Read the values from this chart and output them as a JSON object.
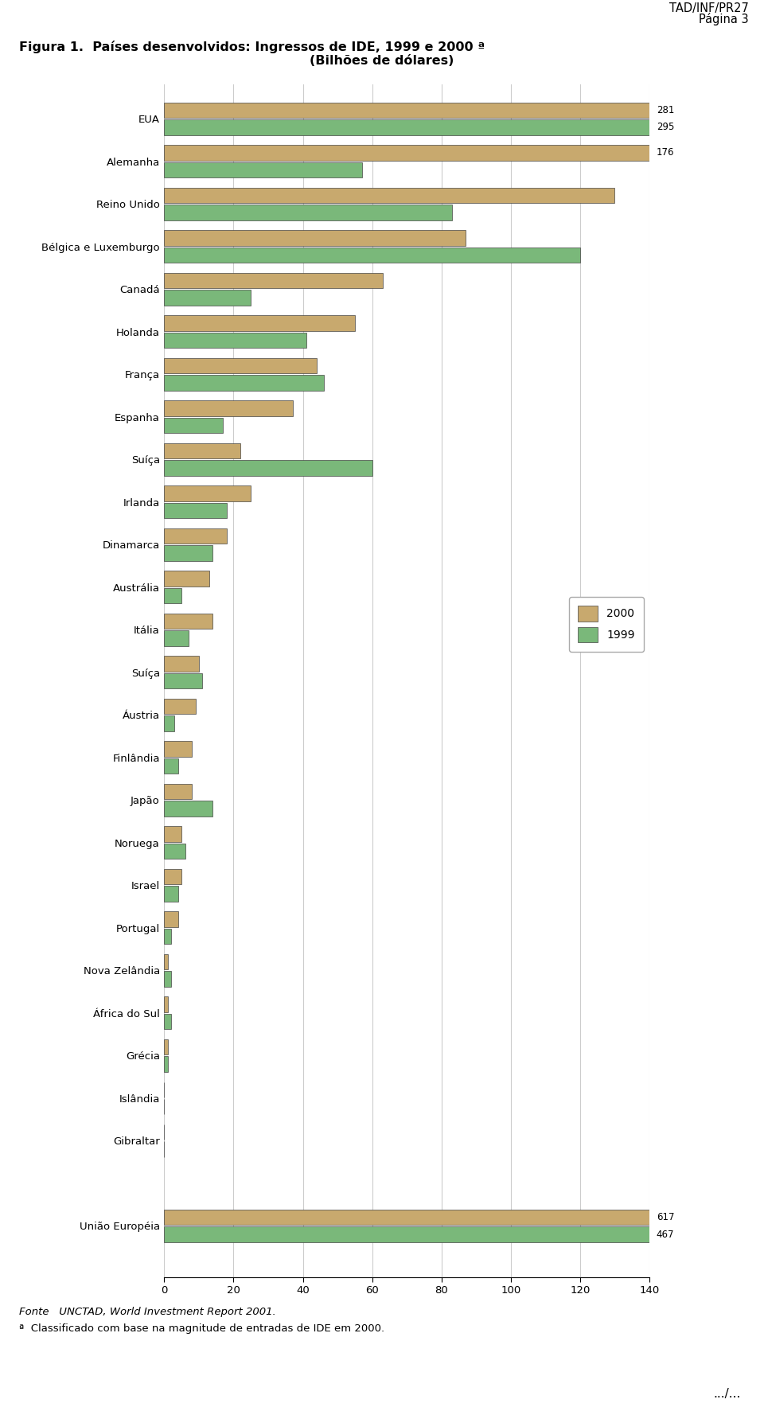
{
  "header_right_line1": "TAD/INF/PR27",
  "header_right_line2": "Página 3",
  "title_line1": "Figura 1.  Países desenvolvidos: Ingressos de IDE, 1999 e 2000 ª",
  "title_line2": "(Bilhões de dólares)",
  "categories": [
    "EUA",
    "Alemanha",
    "Reino Unido",
    "Bélgica e Luxemburgo",
    "Canadá",
    "Holanda",
    "França",
    "Espanha",
    "Suíça",
    "Irlanda",
    "Dinamarca",
    "Austrália",
    "Itália",
    "Suíça",
    "Áustria",
    "Finlândia",
    "Japão",
    "Noruega",
    "Israel",
    "Portugal",
    "Nova Zelândia",
    "África do Sul",
    "Grécia",
    "Islândia",
    "Gibraltar",
    "",
    "União Européia"
  ],
  "values_2000": [
    281,
    176,
    130,
    87,
    63,
    55,
    44,
    37,
    22,
    25,
    18,
    13,
    14,
    10,
    9,
    8,
    8,
    5,
    5,
    4,
    1,
    1,
    1,
    0,
    0,
    0,
    617
  ],
  "values_1999": [
    295,
    57,
    83,
    120,
    25,
    41,
    46,
    17,
    60,
    18,
    14,
    5,
    7,
    11,
    3,
    4,
    14,
    6,
    4,
    2,
    2,
    2,
    1,
    0,
    0,
    0,
    467
  ],
  "color_2000": "#c8a96e",
  "color_1999": "#7ab87a",
  "legend_2000": "2000",
  "legend_1999": "1999",
  "xlim": [
    0,
    140
  ],
  "xticks": [
    0,
    20,
    40,
    60,
    80,
    100,
    120,
    140
  ],
  "footer_source": "Fonte   UNCTAD, World Investment Report 2001.",
  "footer_note": "ª  Classificado com base na magnitude de entradas de IDE em 2000.",
  "dotdotdot": ".../..."
}
